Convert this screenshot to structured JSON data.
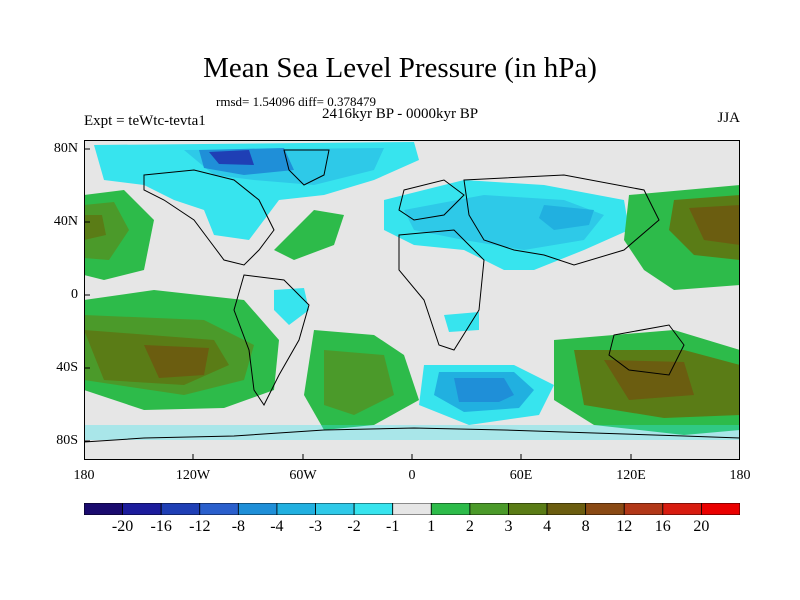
{
  "title": "Mean Sea Level Pressure (in hPa)",
  "stats": "rmsd= 1.54096 diff= 0.378479",
  "period": "2416kyr BP - 0000kyr BP",
  "experiment": "Expt = teWtc-tevta1",
  "season": "JJA",
  "lat_labels": [
    "80N",
    "40N",
    "0",
    "40S",
    "80S"
  ],
  "lat_values": [
    80,
    40,
    0,
    -40,
    -80
  ],
  "lon_labels": [
    "180",
    "120W",
    "60W",
    "0",
    "60E",
    "120E",
    "180"
  ],
  "lon_values": [
    -180,
    -120,
    -60,
    0,
    60,
    120,
    180
  ],
  "colorbar": {
    "labels": [
      "-20",
      "-16",
      "-12",
      "-8",
      "-4",
      "-3",
      "-2",
      "-1",
      "1",
      "2",
      "3",
      "4",
      "8",
      "12",
      "16",
      "20"
    ],
    "colors": [
      "#1a0a6e",
      "#1c1c9c",
      "#1f3fb5",
      "#2a5fcc",
      "#1f8fd8",
      "#21b0e0",
      "#2ec9e8",
      "#37e4ee",
      "#e6e6e6",
      "#2dbb4a",
      "#4b9a2a",
      "#5a7c16",
      "#6b5d10",
      "#8a4a14",
      "#b23818",
      "#d81c10",
      "#ea0000"
    ]
  },
  "fill_colors": {
    "background": "#e6e6e6",
    "land_line": "#000000"
  }
}
